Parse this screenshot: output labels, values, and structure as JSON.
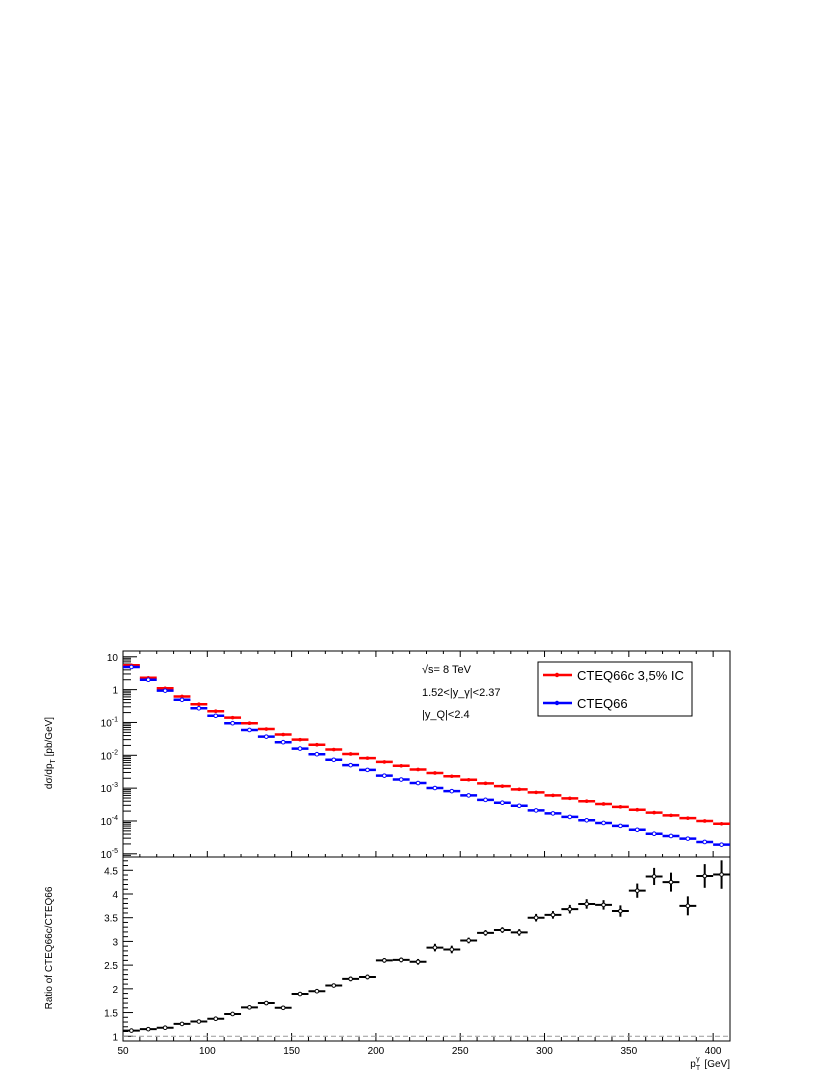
{
  "chart_data": [
    {
      "type": "scatter",
      "ylabel": "dσ/dp_T [pb/GeV]",
      "xlim": [
        50,
        410
      ],
      "yscale": "log",
      "ylim": [
        8e-06,
        15
      ],
      "y_ticks": [
        {
          "base": "10",
          "exp": "",
          "label": "10"
        },
        {
          "base": "1",
          "exp": "",
          "label": "1"
        },
        {
          "base": "10",
          "exp": "-1"
        },
        {
          "base": "10",
          "exp": "-2"
        },
        {
          "base": "10",
          "exp": "-3"
        },
        {
          "base": "10",
          "exp": "-4"
        },
        {
          "base": "10",
          "exp": "-5"
        }
      ],
      "annotations": [
        "√s= 8 TeV",
        "1.52<|y_γ|<2.37",
        "|y_Q|<2.4"
      ],
      "legend_position": "top-right",
      "bin_edges": [
        50,
        60,
        70,
        80,
        90,
        100,
        110,
        120,
        130,
        140,
        150,
        160,
        170,
        180,
        190,
        200,
        210,
        220,
        230,
        240,
        250,
        260,
        270,
        280,
        290,
        300,
        310,
        320,
        330,
        340,
        350,
        360,
        370,
        380,
        390,
        400,
        410
      ],
      "series": [
        {
          "name": "CTEQ66c 3,5% IC",
          "color": "#ff0000",
          "marker": "filled",
          "values": [
            5.5,
            2.3,
            1.1,
            0.62,
            0.36,
            0.22,
            0.14,
            0.095,
            0.063,
            0.043,
            0.03,
            0.021,
            0.015,
            0.011,
            0.0082,
            0.0063,
            0.0048,
            0.0037,
            0.0029,
            0.0023,
            0.0018,
            0.0014,
            0.00115,
            0.00092,
            0.00074,
            0.0006,
            0.00049,
            0.0004,
            0.00033,
            0.00027,
            0.00022,
            0.00018,
            0.000148,
            0.000122,
            0.0001,
            8.2e-05
          ]
        },
        {
          "name": "CTEQ66",
          "color": "#0000ff",
          "marker": "open",
          "values": [
            4.9,
            2.0,
            0.93,
            0.49,
            0.27,
            0.16,
            0.095,
            0.059,
            0.037,
            0.025,
            0.016,
            0.0108,
            0.0073,
            0.005,
            0.0036,
            0.0024,
            0.00183,
            0.00143,
            0.00101,
            0.00081,
            0.0006,
            0.00044,
            0.00036,
            0.00029,
            0.00021,
            0.00017,
            0.000133,
            0.000105,
            8.7e-05,
            7.1e-05,
            5.4e-05,
            4.1e-05,
            3.5e-05,
            2.9e-05,
            2.3e-05,
            1.9e-05
          ]
        }
      ]
    },
    {
      "type": "scatter",
      "xlabel": "p_T^γ [GeV]",
      "ylabel": "Ratio of CTEQ66c/CTEQ66",
      "xlim": [
        50,
        410
      ],
      "ylim": [
        0.9,
        4.78
      ],
      "x_ticks": [
        "50",
        "100",
        "150",
        "200",
        "250",
        "300",
        "350",
        "400"
      ],
      "y_ticks": [
        "1",
        "1.5",
        "2",
        "2.5",
        "3",
        "3.5",
        "4",
        "4.5"
      ],
      "reference_line": 1,
      "series": [
        {
          "color": "#000000",
          "marker": "open",
          "values": [
            1.12,
            1.15,
            1.18,
            1.26,
            1.31,
            1.37,
            1.47,
            1.61,
            1.7,
            1.6,
            1.89,
            1.95,
            2.07,
            2.21,
            2.25,
            2.6,
            2.61,
            2.57,
            2.87,
            2.83,
            3.02,
            3.18,
            3.24,
            3.19,
            3.5,
            3.56,
            3.68,
            3.79,
            3.77,
            3.64,
            4.07,
            4.37,
            4.25,
            3.75,
            4.38,
            4.41
          ],
          "errors": [
            0.02,
            0.02,
            0.02,
            0.03,
            0.03,
            0.03,
            0.03,
            0.04,
            0.04,
            0.04,
            0.04,
            0.04,
            0.04,
            0.05,
            0.05,
            0.05,
            0.05,
            0.06,
            0.08,
            0.08,
            0.06,
            0.06,
            0.06,
            0.07,
            0.08,
            0.08,
            0.09,
            0.1,
            0.1,
            0.12,
            0.15,
            0.18,
            0.2,
            0.2,
            0.25,
            0.3
          ]
        }
      ]
    }
  ]
}
